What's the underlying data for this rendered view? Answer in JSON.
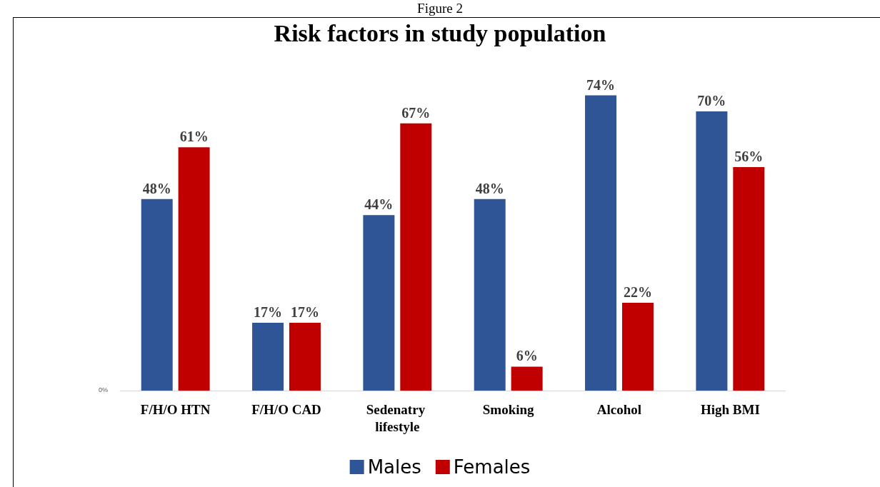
{
  "chart_data": {
    "type": "bar",
    "title": "Risk factors in study population",
    "annotations": [
      "Figure 2",
      "0%"
    ],
    "categories": [
      "F/H/O HTN",
      "F/H/O CAD",
      "Sedenatry lifestyle",
      "Smoking",
      "Alcohol",
      "High BMI"
    ],
    "series": [
      {
        "name": "Males",
        "color": "#2f5597",
        "values": [
          48,
          17,
          44,
          48,
          74,
          70
        ],
        "value_labels": [
          "48%",
          "17%",
          "44%",
          "48%",
          "74%",
          "70%"
        ]
      },
      {
        "name": "Females",
        "color": "#c00000",
        "values": [
          61,
          17,
          67,
          6,
          22,
          56
        ],
        "value_labels": [
          "61%",
          "17%",
          "67%",
          "6%",
          "22%",
          "56%"
        ]
      }
    ],
    "grid": false,
    "legend": "bottom"
  }
}
